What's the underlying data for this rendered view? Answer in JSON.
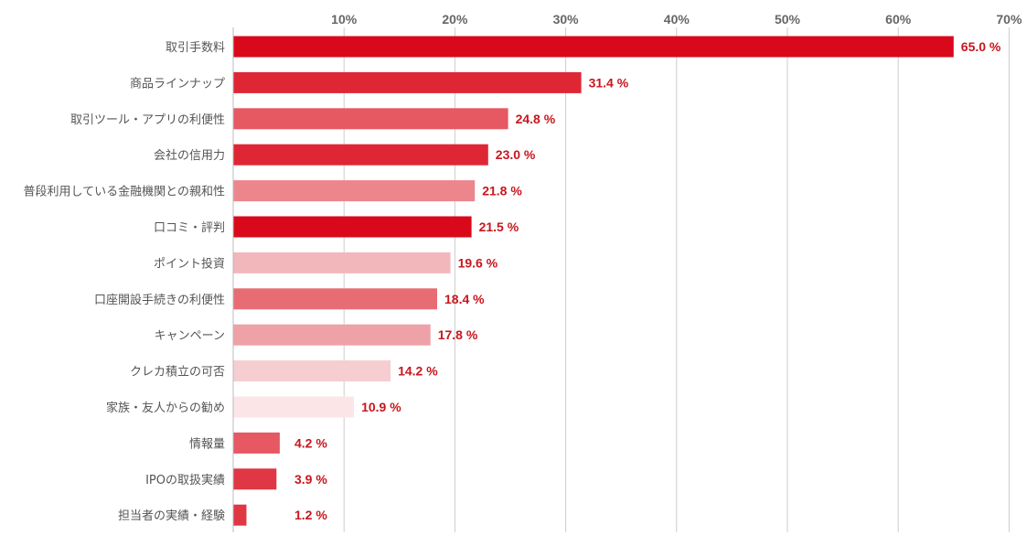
{
  "chart_data": {
    "type": "bar",
    "orientation": "horizontal",
    "title": "",
    "xlabel": "",
    "ylabel": "",
    "xlim": [
      0,
      70
    ],
    "ticks": [
      {
        "value": 10,
        "label": "10%"
      },
      {
        "value": 20,
        "label": "20%"
      },
      {
        "value": 30,
        "label": "30%"
      },
      {
        "value": 40,
        "label": "40%"
      },
      {
        "value": 50,
        "label": "50%"
      },
      {
        "value": 60,
        "label": "60%"
      },
      {
        "value": 70,
        "label": "70%"
      }
    ],
    "grid": true,
    "legend": "none",
    "categories": [
      "取引手数料",
      "商品ラインナップ",
      "取引ツール・アプリの利便性",
      "会社の信用力",
      "普段利用している金融機関との親和性",
      "口コミ・評判",
      "ポイント投資",
      "口座開設手続きの利便性",
      "キャンペーン",
      "クレカ積立の可否",
      "家族・友人からの勧め",
      "情報量",
      "IPOの取扱実績",
      "担当者の実績・経験"
    ],
    "values": [
      65.0,
      31.4,
      24.8,
      23.0,
      21.8,
      21.5,
      19.6,
      18.4,
      17.8,
      14.2,
      10.9,
      4.2,
      3.9,
      1.2
    ],
    "value_labels": [
      "65.0 %",
      "31.4 %",
      "24.8 %",
      "23.0 %",
      "21.8 %",
      "21.5 %",
      "19.6 %",
      "18.4 %",
      "17.8 %",
      "14.2 %",
      "10.9 %",
      "4.2 %",
      "3.9 %",
      "1.2 %"
    ],
    "bar_colors": [
      "#d9091b",
      "#df2634",
      "#e65862",
      "#df2634",
      "#ec858c",
      "#d9091b",
      "#f2b7bb",
      "#e86c74",
      "#eea1a6",
      "#f6cdd0",
      "#fbe5e7",
      "#e65862",
      "#df3744",
      "#df3744"
    ],
    "value_label_color": "#c8161d"
  }
}
